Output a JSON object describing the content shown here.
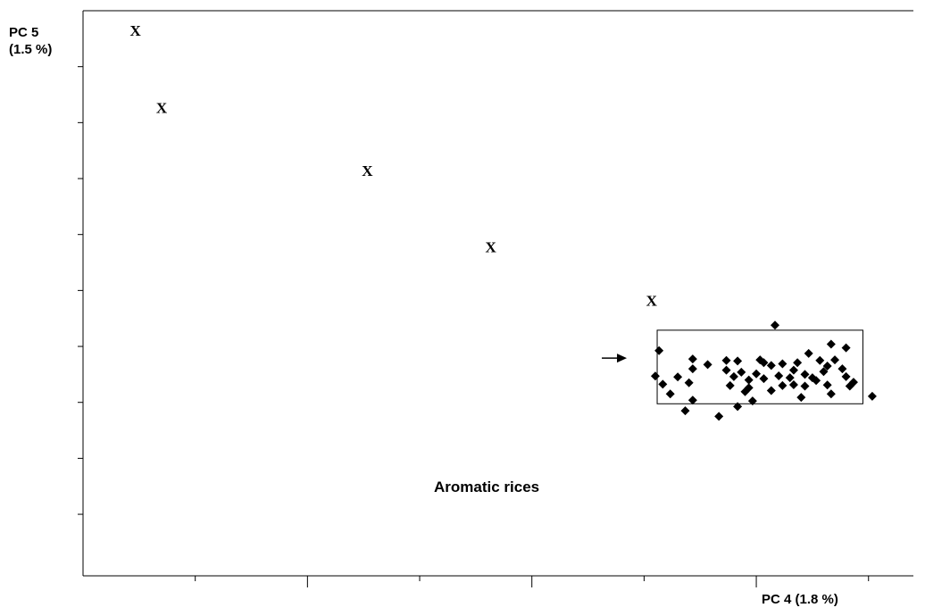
{
  "chart_data": {
    "type": "scatter",
    "xlabel": "PC 4 (1.8 %)",
    "ylabel_lines": [
      "PC 5",
      "(1.5 %)"
    ],
    "xlim": [
      -1.2,
      1.02
    ],
    "ylim": [
      -1.02,
      1.0
    ],
    "x_ticks": [
      -0.6,
      0.0,
      0.6
    ],
    "y_ticks": [
      -0.8,
      -0.6,
      -0.4,
      -0.2,
      0.0,
      0.2,
      0.4,
      0.6,
      0.8
    ],
    "grid": false,
    "legend": "none",
    "series": [
      {
        "marker": "x-letter",
        "marker_text": "X",
        "points": [
          {
            "x": -1.06,
            "y": 0.93
          },
          {
            "x": -0.99,
            "y": 0.654
          },
          {
            "x": -0.44,
            "y": 0.428
          },
          {
            "x": -0.11,
            "y": 0.156
          },
          {
            "x": 0.32,
            "y": -0.036
          }
        ]
      },
      {
        "marker": "diamond",
        "points": [
          {
            "x": 0.65,
            "y": -0.124
          },
          {
            "x": 0.34,
            "y": -0.215
          },
          {
            "x": 0.43,
            "y": -0.245
          },
          {
            "x": 0.33,
            "y": -0.306
          },
          {
            "x": 0.39,
            "y": -0.309
          },
          {
            "x": 0.35,
            "y": -0.335
          },
          {
            "x": 0.42,
            "y": -0.33
          },
          {
            "x": 0.37,
            "y": -0.37
          },
          {
            "x": 0.43,
            "y": -0.392
          },
          {
            "x": 0.41,
            "y": -0.43
          },
          {
            "x": 0.5,
            "y": -0.45
          },
          {
            "x": 0.43,
            "y": -0.28
          },
          {
            "x": 0.47,
            "y": -0.265
          },
          {
            "x": 0.52,
            "y": -0.25
          },
          {
            "x": 0.55,
            "y": -0.252
          },
          {
            "x": 0.61,
            "y": -0.248
          },
          {
            "x": 0.62,
            "y": -0.258
          },
          {
            "x": 0.67,
            "y": -0.262
          },
          {
            "x": 0.74,
            "y": -0.225
          },
          {
            "x": 0.8,
            "y": -0.192
          },
          {
            "x": 0.84,
            "y": -0.205
          },
          {
            "x": 0.71,
            "y": -0.258
          },
          {
            "x": 0.77,
            "y": -0.25
          },
          {
            "x": 0.75,
            "y": -0.312
          },
          {
            "x": 0.64,
            "y": -0.268
          },
          {
            "x": 0.7,
            "y": -0.285
          },
          {
            "x": 0.79,
            "y": -0.27
          },
          {
            "x": 0.78,
            "y": -0.29
          },
          {
            "x": 0.81,
            "y": -0.248
          },
          {
            "x": 0.83,
            "y": -0.28
          },
          {
            "x": 0.52,
            "y": -0.285
          },
          {
            "x": 0.56,
            "y": -0.292
          },
          {
            "x": 0.6,
            "y": -0.298
          },
          {
            "x": 0.54,
            "y": -0.308
          },
          {
            "x": 0.58,
            "y": -0.32
          },
          {
            "x": 0.62,
            "y": -0.315
          },
          {
            "x": 0.66,
            "y": -0.305
          },
          {
            "x": 0.69,
            "y": -0.312
          },
          {
            "x": 0.73,
            "y": -0.3
          },
          {
            "x": 0.76,
            "y": -0.322
          },
          {
            "x": 0.79,
            "y": -0.338
          },
          {
            "x": 0.84,
            "y": -0.308
          },
          {
            "x": 0.86,
            "y": -0.328
          },
          {
            "x": 0.85,
            "y": -0.342
          },
          {
            "x": 0.53,
            "y": -0.34
          },
          {
            "x": 0.58,
            "y": -0.348
          },
          {
            "x": 0.64,
            "y": -0.358
          },
          {
            "x": 0.67,
            "y": -0.34
          },
          {
            "x": 0.7,
            "y": -0.337
          },
          {
            "x": 0.73,
            "y": -0.342
          },
          {
            "x": 0.8,
            "y": -0.37
          },
          {
            "x": 0.57,
            "y": -0.362
          },
          {
            "x": 0.72,
            "y": -0.382
          },
          {
            "x": 0.59,
            "y": -0.395
          },
          {
            "x": 0.55,
            "y": -0.415
          },
          {
            "x": 0.91,
            "y": -0.378
          }
        ]
      }
    ],
    "annotation": {
      "text": "Aromatic rices",
      "box": {
        "x0": 0.335,
        "x1": 0.885,
        "y0": -0.405,
        "y1": -0.142
      }
    }
  }
}
